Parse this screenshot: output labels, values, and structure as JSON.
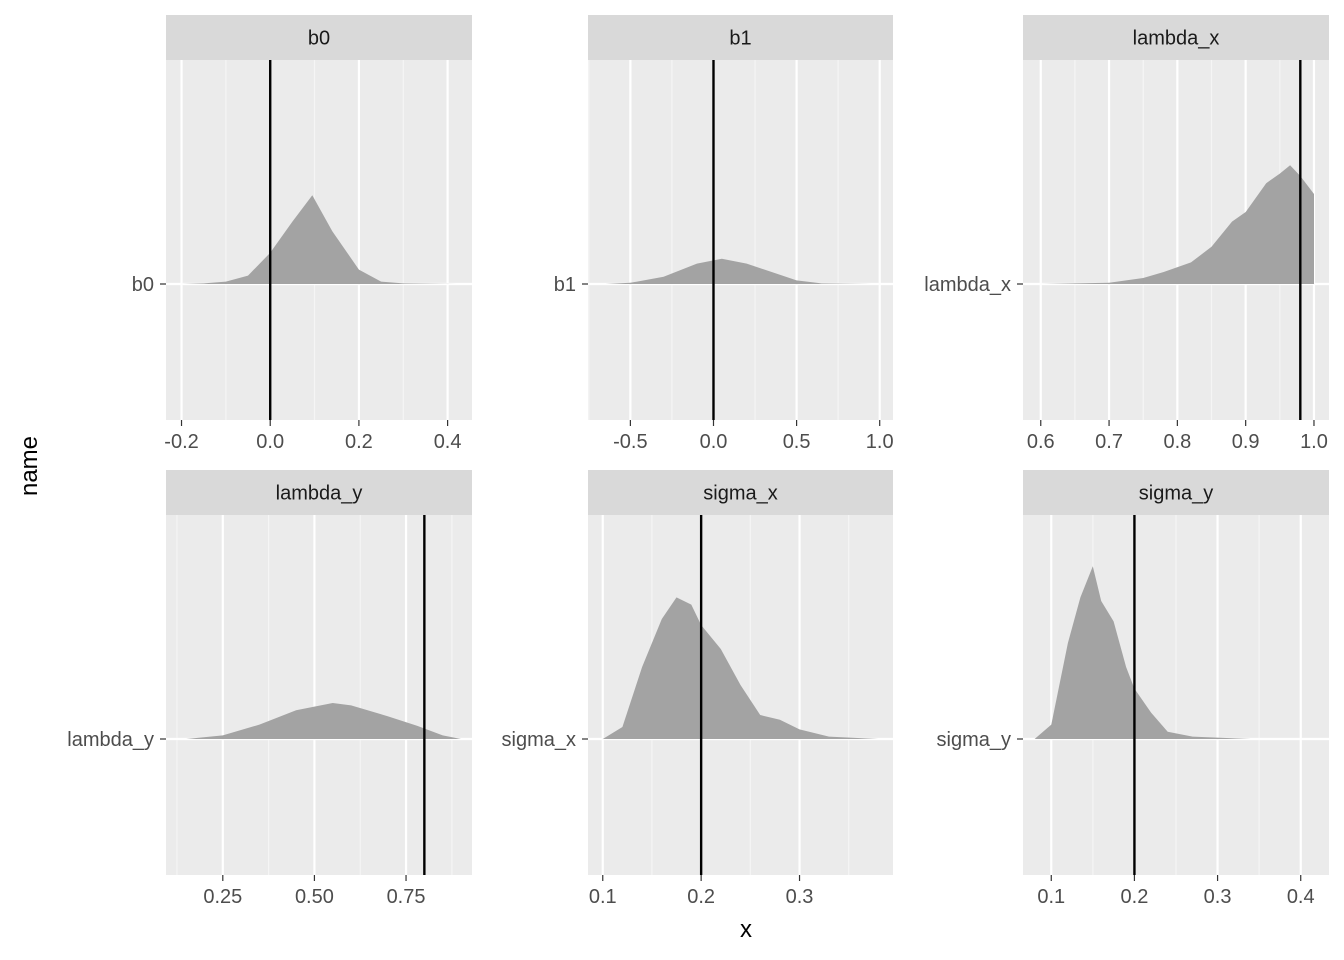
{
  "chart_data": {
    "type": "area",
    "description_kind": "faceted ridgeline density plots with reference lines",
    "xlabel": "x",
    "ylabel": "name",
    "grid": true,
    "facets": [
      {
        "strip": "b0",
        "y_category": "b0",
        "xlim": [
          -0.235,
          0.455
        ],
        "xticks": [
          -0.2,
          0.0,
          0.2,
          0.4
        ],
        "xtick_labels": [
          "-0.2",
          "0.0",
          "0.2",
          "0.4"
        ],
        "ref_x": 0.0,
        "density": [
          [
            -0.2,
            0.0
          ],
          [
            -0.15,
            0.005
          ],
          [
            -0.1,
            0.02
          ],
          [
            -0.05,
            0.07
          ],
          [
            0.0,
            0.26
          ],
          [
            0.05,
            0.52
          ],
          [
            0.095,
            0.74
          ],
          [
            0.14,
            0.44
          ],
          [
            0.2,
            0.12
          ],
          [
            0.25,
            0.02
          ],
          [
            0.3,
            0.005
          ],
          [
            0.42,
            0.0
          ]
        ]
      },
      {
        "strip": "b1",
        "y_category": "b1",
        "xlim": [
          -0.755,
          1.08
        ],
        "xticks": [
          -0.5,
          0.0,
          0.5,
          1.0
        ],
        "xtick_labels": [
          "-0.5",
          "0.0",
          "0.5",
          "1.0"
        ],
        "ref_x": 0.0,
        "density": [
          [
            -0.65,
            0.0
          ],
          [
            -0.5,
            0.01
          ],
          [
            -0.3,
            0.06
          ],
          [
            -0.1,
            0.17
          ],
          [
            0.05,
            0.21
          ],
          [
            0.2,
            0.17
          ],
          [
            0.35,
            0.1
          ],
          [
            0.5,
            0.03
          ],
          [
            0.65,
            0.005
          ],
          [
            0.95,
            0.0
          ]
        ]
      },
      {
        "strip": "lambda_x",
        "y_category": "lambda_x",
        "xlim": [
          0.574,
          1.022
        ],
        "xticks": [
          0.6,
          0.7,
          0.8,
          0.9,
          1.0
        ],
        "xtick_labels": [
          "0.6",
          "0.7",
          "0.8",
          "0.9",
          "1.0"
        ],
        "ref_x": 0.98,
        "density": [
          [
            0.6,
            0.0
          ],
          [
            0.65,
            0.005
          ],
          [
            0.7,
            0.01
          ],
          [
            0.75,
            0.05
          ],
          [
            0.78,
            0.1
          ],
          [
            0.82,
            0.18
          ],
          [
            0.85,
            0.31
          ],
          [
            0.88,
            0.52
          ],
          [
            0.9,
            0.6
          ],
          [
            0.93,
            0.84
          ],
          [
            0.95,
            0.92
          ],
          [
            0.965,
            0.99
          ],
          [
            0.98,
            0.9
          ],
          [
            1.0,
            0.75
          ]
        ]
      },
      {
        "strip": "lambda_y",
        "y_category": "lambda_y",
        "xlim": [
          0.095,
          0.93
        ],
        "xticks": [
          0.25,
          0.5,
          0.75
        ],
        "xtick_labels": [
          "0.25",
          "0.50",
          "0.75"
        ],
        "ref_x": 0.8,
        "density": [
          [
            0.15,
            0.0
          ],
          [
            0.25,
            0.03
          ],
          [
            0.35,
            0.12
          ],
          [
            0.45,
            0.24
          ],
          [
            0.55,
            0.3
          ],
          [
            0.6,
            0.28
          ],
          [
            0.7,
            0.19
          ],
          [
            0.78,
            0.11
          ],
          [
            0.85,
            0.03
          ],
          [
            0.9,
            0.0
          ]
        ]
      },
      {
        "strip": "sigma_x",
        "y_category": "sigma_x",
        "xlim": [
          0.085,
          0.395
        ],
        "xticks": [
          0.1,
          0.2,
          0.3
        ],
        "xtick_labels": [
          "0.1",
          "0.2",
          "0.3"
        ],
        "ref_x": 0.2,
        "density": [
          [
            0.1,
            0.0
          ],
          [
            0.12,
            0.1
          ],
          [
            0.14,
            0.6
          ],
          [
            0.16,
            1.0
          ],
          [
            0.175,
            1.18
          ],
          [
            0.19,
            1.12
          ],
          [
            0.2,
            0.95
          ],
          [
            0.22,
            0.75
          ],
          [
            0.24,
            0.45
          ],
          [
            0.26,
            0.2
          ],
          [
            0.28,
            0.16
          ],
          [
            0.3,
            0.08
          ],
          [
            0.33,
            0.02
          ],
          [
            0.38,
            0.0
          ]
        ]
      },
      {
        "strip": "sigma_y",
        "y_category": "sigma_y",
        "xlim": [
          0.066,
          0.434
        ],
        "xticks": [
          0.1,
          0.2,
          0.3,
          0.4
        ],
        "xtick_labels": [
          "0.1",
          "0.2",
          "0.3",
          "0.4"
        ],
        "ref_x": 0.2,
        "density": [
          [
            0.08,
            0.0
          ],
          [
            0.1,
            0.12
          ],
          [
            0.12,
            0.8
          ],
          [
            0.135,
            1.18
          ],
          [
            0.15,
            1.44
          ],
          [
            0.16,
            1.15
          ],
          [
            0.175,
            0.98
          ],
          [
            0.19,
            0.6
          ],
          [
            0.2,
            0.42
          ],
          [
            0.22,
            0.22
          ],
          [
            0.24,
            0.06
          ],
          [
            0.27,
            0.02
          ],
          [
            0.34,
            0.0
          ]
        ]
      }
    ]
  }
}
